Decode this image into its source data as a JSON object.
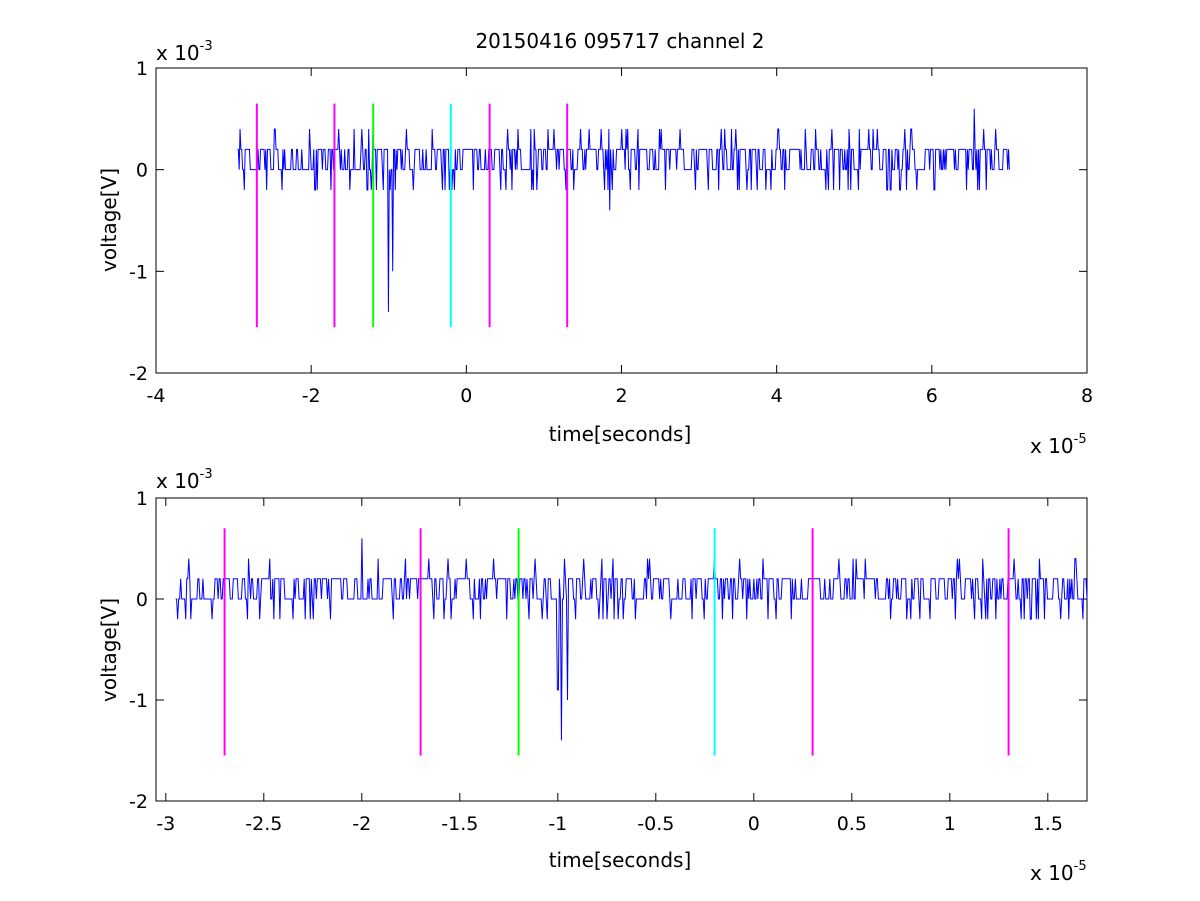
{
  "figure": {
    "title": "20150416 095717 channel 2"
  },
  "chart_data": [
    {
      "type": "line",
      "xlabel": "time[seconds]",
      "ylabel": "voltage[V]",
      "x_multiplier": {
        "base": "x 10",
        "exponent": "-5"
      },
      "y_multiplier": {
        "base": "x 10",
        "exponent": "-3"
      },
      "xlim": [
        -4,
        8
      ],
      "ylim": [
        -2,
        1
      ],
      "xticks": [
        -4,
        -2,
        0,
        2,
        4,
        6,
        8
      ],
      "xtick_labels": [
        "-4",
        "-2",
        "0",
        "2",
        "4",
        "6",
        "8"
      ],
      "yticks": [
        -2,
        -1,
        0,
        1
      ],
      "ytick_labels": [
        "-2",
        "-1",
        "0",
        "1"
      ],
      "signal": {
        "color": "#0000ff",
        "x_start": -2.95,
        "x_end": 7.0,
        "baseline": 0.1,
        "levels": [
          0.2,
          0.0,
          -0.2,
          0.4
        ],
        "spikes": [
          {
            "x": -1.0,
            "y": -1.4
          },
          {
            "x": -0.95,
            "y": -1.0
          },
          {
            "x": 1.85,
            "y": -0.4
          },
          {
            "x": 6.55,
            "y": 0.6
          }
        ]
      },
      "markers": [
        {
          "x": -2.7,
          "color": "#ff00ff"
        },
        {
          "x": -1.7,
          "color": "#ff00ff"
        },
        {
          "x": -1.2,
          "color": "#00ff00"
        },
        {
          "x": -0.2,
          "color": "#00ffff"
        },
        {
          "x": 0.3,
          "color": "#ff00ff"
        },
        {
          "x": 1.3,
          "color": "#ff00ff"
        }
      ],
      "marker_range": [
        -1.55,
        0.65
      ]
    },
    {
      "type": "line",
      "xlabel": "time[seconds]",
      "ylabel": "voltage[V]",
      "x_multiplier": {
        "base": "x 10",
        "exponent": "-5"
      },
      "y_multiplier": {
        "base": "x 10",
        "exponent": "-3"
      },
      "xlim": [
        -3.05,
        1.7
      ],
      "ylim": [
        -2,
        1
      ],
      "xticks": [
        -3,
        -2.5,
        -2,
        -1.5,
        -1,
        -0.5,
        0,
        0.5,
        1,
        1.5
      ],
      "xtick_labels": [
        "-3",
        "-2.5",
        "-2",
        "-1.5",
        "-1",
        "-0.5",
        "0",
        "0.5",
        "1",
        "1.5"
      ],
      "yticks": [
        -2,
        -1,
        0,
        1
      ],
      "ytick_labels": [
        "-2",
        "-1",
        "0",
        "1"
      ],
      "signal": {
        "color": "#0000ff",
        "x_start": -2.95,
        "x_end": 1.7,
        "baseline": 0.1,
        "levels": [
          0.2,
          0.0,
          -0.2,
          0.4
        ],
        "spikes": [
          {
            "x": -1.0,
            "y": -0.9
          },
          {
            "x": -0.98,
            "y": -1.4
          },
          {
            "x": -0.95,
            "y": -1.0
          },
          {
            "x": -2.0,
            "y": 0.6
          }
        ]
      },
      "markers": [
        {
          "x": -2.7,
          "color": "#ff00ff"
        },
        {
          "x": -1.7,
          "color": "#ff00ff"
        },
        {
          "x": -1.2,
          "color": "#00ff00"
        },
        {
          "x": -0.2,
          "color": "#00ffff"
        },
        {
          "x": 0.3,
          "color": "#ff00ff"
        },
        {
          "x": 1.3,
          "color": "#ff00ff"
        }
      ],
      "marker_range": [
        -1.55,
        0.7
      ]
    }
  ]
}
